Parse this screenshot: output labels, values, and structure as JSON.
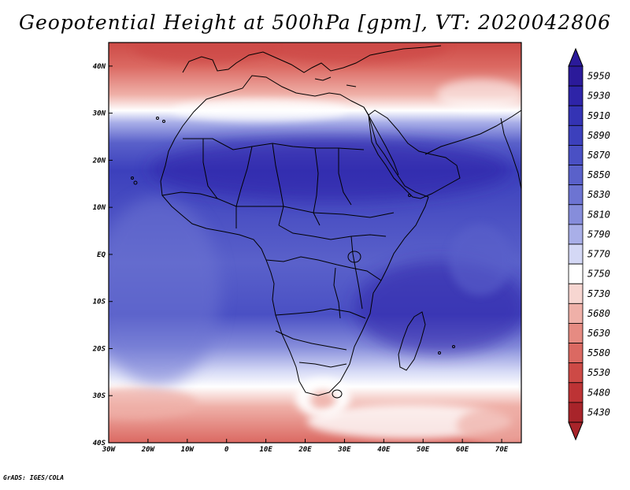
{
  "title": "Geopotential Height at 500hPa [gpm], VT: 2020042806",
  "credit": "GrADS: IGES/COLA",
  "map": {
    "region": "Africa",
    "lon_range": [
      -30,
      75
    ],
    "lat_range": [
      -40,
      45
    ],
    "lat_labels": [
      "40N",
      "30N",
      "20N",
      "10N",
      "EQ",
      "10S",
      "20S",
      "30S",
      "40S"
    ],
    "lon_labels": [
      "30W",
      "20W",
      "10W",
      "0",
      "10E",
      "20E",
      "30E",
      "40E",
      "50E",
      "60E",
      "70E"
    ]
  },
  "colorbar": {
    "levels": [
      "5950",
      "5930",
      "5910",
      "5890",
      "5870",
      "5850",
      "5830",
      "5810",
      "5790",
      "5770",
      "5750",
      "5730",
      "5680",
      "5630",
      "5580",
      "5530",
      "5480",
      "5430"
    ],
    "colors": [
      "#2b1a9a",
      "#2e24a8",
      "#3433b4",
      "#3c40bc",
      "#4a50c4",
      "#5a61ca",
      "#6d74d2",
      "#868ddb",
      "#a9afe8",
      "#d4d8f5",
      "#ffffff",
      "#f7d6d1",
      "#efb0a8",
      "#e68b82",
      "#db6962",
      "#cd4a46",
      "#bd3335",
      "#a8242a"
    ]
  }
}
